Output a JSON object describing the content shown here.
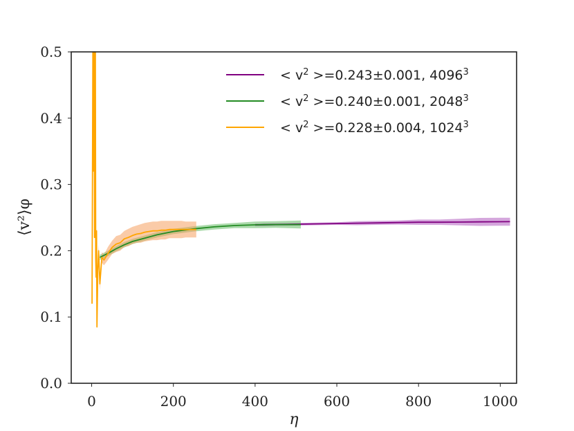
{
  "chart_data": {
    "type": "line",
    "xlabel": "η",
    "ylabel": "⟨v²⟩φ",
    "xlim": [
      -50,
      1040
    ],
    "ylim": [
      0.0,
      0.5
    ],
    "xticks": [
      "0",
      "200",
      "400",
      "600",
      "800",
      "1000"
    ],
    "yticks": [
      "0.0",
      "0.1",
      "0.2",
      "0.3",
      "0.4",
      "0.5"
    ],
    "grid": false,
    "legend_position": "top-right",
    "series": [
      {
        "name": "< v² >=0.243±0.001, 4096³",
        "legend": {
          "prefix": "< v",
          "sup": "2",
          "mid": " >=0.243±0.001, 4096",
          "sup2": "3"
        },
        "color": "#800080",
        "band_color": "#b05cc0",
        "x": [
          400,
          450,
          500,
          550,
          600,
          650,
          700,
          750,
          800,
          850,
          900,
          950,
          1000,
          1024
        ],
        "y": [
          0.239,
          0.2395,
          0.24,
          0.2405,
          0.241,
          0.2415,
          0.242,
          0.2425,
          0.243,
          0.243,
          0.2432,
          0.2435,
          0.2437,
          0.2438
        ],
        "band": [
          0.002,
          0.002,
          0.002,
          0.002,
          0.002,
          0.003,
          0.003,
          0.003,
          0.004,
          0.004,
          0.005,
          0.006,
          0.006,
          0.006
        ]
      },
      {
        "name": "< v² >=0.240±0.001, 2048³",
        "legend": {
          "prefix": "< v",
          "sup": "2",
          "mid": " >=0.240±0.001, 2048",
          "sup2": "3"
        },
        "color": "#228b22",
        "band_color": "#66bb66",
        "x": [
          20,
          40,
          60,
          80,
          100,
          130,
          160,
          200,
          250,
          300,
          350,
          400,
          450,
          512
        ],
        "y": [
          0.19,
          0.196,
          0.203,
          0.209,
          0.214,
          0.219,
          0.224,
          0.229,
          0.233,
          0.236,
          0.238,
          0.239,
          0.2395,
          0.2395
        ],
        "band": [
          0.004,
          0.004,
          0.004,
          0.004,
          0.004,
          0.004,
          0.004,
          0.004,
          0.004,
          0.004,
          0.004,
          0.005,
          0.005,
          0.006
        ]
      },
      {
        "name": "< v² >=0.228±0.004, 1024³",
        "legend": {
          "prefix": "< v",
          "sup": "2",
          "mid": " >=0.228±0.004, 1024",
          "sup2": "3"
        },
        "color": "#ffa500",
        "band_color": "#f5a060",
        "x": [
          1,
          3,
          4,
          6,
          7,
          9,
          10,
          11,
          12,
          13,
          15,
          17,
          20,
          25,
          30,
          40,
          50,
          60,
          70,
          80,
          90,
          100,
          110,
          120,
          130,
          140,
          150,
          160,
          170,
          180,
          190,
          200,
          210,
          220,
          230,
          240,
          250,
          256
        ],
        "y": [
          0.12,
          0.5,
          0.32,
          0.5,
          0.22,
          0.5,
          0.19,
          0.16,
          0.23,
          0.085,
          0.17,
          0.2,
          0.15,
          0.19,
          0.186,
          0.196,
          0.205,
          0.21,
          0.212,
          0.218,
          0.22,
          0.223,
          0.225,
          0.226,
          0.228,
          0.229,
          0.23,
          0.23,
          0.231,
          0.231,
          0.232,
          0.232,
          0.232,
          0.232,
          0.232,
          0.232,
          0.232,
          0.232
        ],
        "band": [
          0,
          0,
          0,
          0,
          0,
          0,
          0,
          0,
          0,
          0,
          0.01,
          0.01,
          0.01,
          0.008,
          0.008,
          0.01,
          0.01,
          0.012,
          0.012,
          0.012,
          0.013,
          0.013,
          0.013,
          0.014,
          0.014,
          0.014,
          0.014,
          0.014,
          0.014,
          0.014,
          0.013,
          0.013,
          0.013,
          0.013,
          0.012,
          0.012,
          0.012,
          0.012
        ]
      }
    ]
  }
}
